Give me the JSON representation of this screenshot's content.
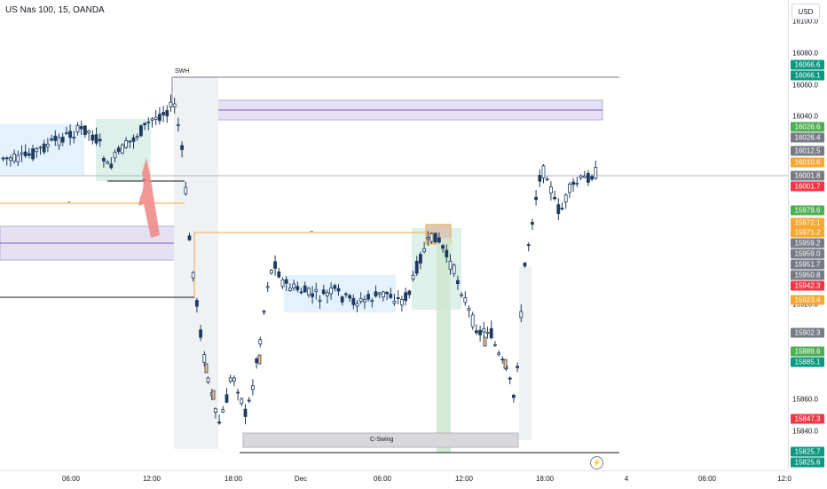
{
  "header": {
    "symbol": "US Nas 100, 15, OANDA",
    "currency": "USD"
  },
  "annotations": {
    "swh": "SWH",
    "c_swing": "C-Swing",
    "tilde1": "~",
    "tilde2": "~",
    "tilde3": "~"
  },
  "icons": {
    "flash": "lightning-icon"
  },
  "price_axis": {
    "ticks": [
      "16100.0",
      "16080.0",
      "16060.0",
      "16040.0",
      "15920.0",
      "15860.0",
      "15840.0"
    ],
    "tags": [
      {
        "label": "16066.6",
        "color": "#089981"
      },
      {
        "label": "16066.1",
        "color": "#089981"
      },
      {
        "label": "16026.6",
        "color": "#4caf50"
      },
      {
        "label": "16026.4",
        "color": "#787b86"
      },
      {
        "label": "16012.5",
        "color": "#787b86"
      },
      {
        "label": "16010.6",
        "color": "#f7a732"
      },
      {
        "label": "16001.8",
        "color": "#787b86"
      },
      {
        "label": "16001.7",
        "color": "#f23645"
      },
      {
        "label": "15979.6",
        "color": "#4caf50"
      },
      {
        "label": "15972.1",
        "color": "#f7a732"
      },
      {
        "label": "15971.2",
        "color": "#f7a732"
      },
      {
        "label": "15959.2",
        "color": "#787b86"
      },
      {
        "label": "15959.0",
        "color": "#787b86"
      },
      {
        "label": "15951.7",
        "color": "#787b86"
      },
      {
        "label": "15950.8",
        "color": "#787b86"
      },
      {
        "label": "15942.3",
        "color": "#f23645"
      },
      {
        "label": "15923.4",
        "color": "#f7a732"
      },
      {
        "label": "15902.3",
        "color": "#787b86"
      },
      {
        "label": "15889.6",
        "color": "#4caf50"
      },
      {
        "label": "15885.1",
        "color": "#089981"
      },
      {
        "label": "15847.3",
        "color": "#f23645"
      },
      {
        "label": "15825.7",
        "color": "#089981"
      },
      {
        "label": "15825.6",
        "color": "#089981"
      }
    ]
  },
  "time_axis": [
    "06:00",
    "12:00",
    "18:00",
    "Dec",
    "06:00",
    "12:00",
    "18:00",
    "4",
    "06:00",
    "12:0"
  ],
  "colors": {
    "up": "#1e3a5f",
    "down": "#1e3a5f",
    "up_fill": "#ffffff",
    "down_fill": "#1e3a5f",
    "accent_orange": "#f7a732"
  }
}
